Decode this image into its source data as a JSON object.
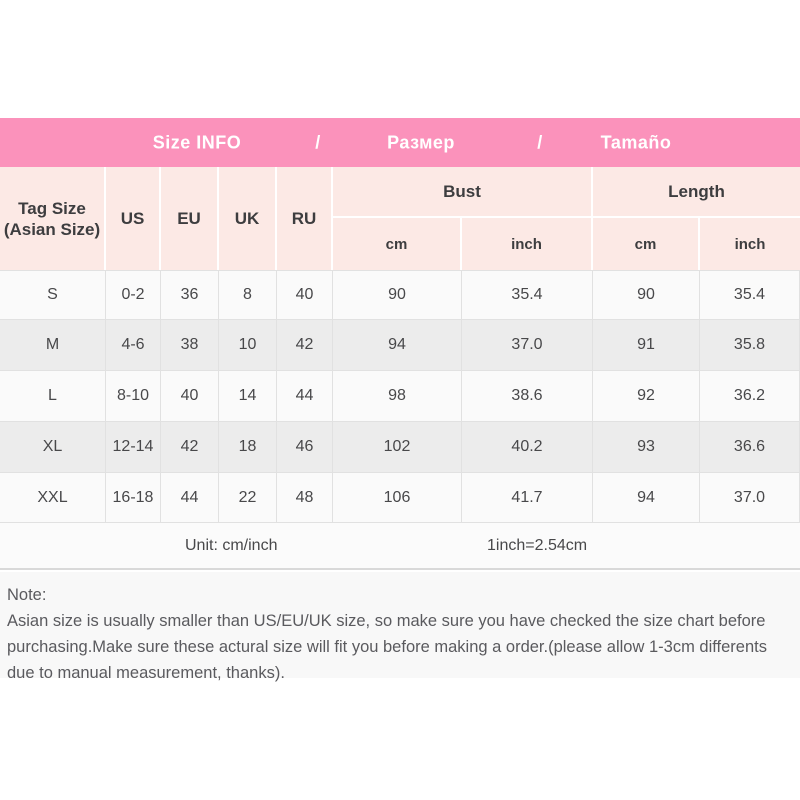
{
  "colors": {
    "accent_pink": "#fb92bb",
    "header_pink": "#fce9e5",
    "row_light": "#fafafa",
    "row_alt": "#ececec"
  },
  "title_bar": {
    "items": [
      "Size INFO",
      "/",
      "Размер",
      "/",
      "Tamaño"
    ]
  },
  "table": {
    "header": {
      "tag_line1": "Tag Size",
      "tag_line2": "(Asian Size)",
      "us": "US",
      "eu": "EU",
      "uk": "UK",
      "ru": "RU",
      "bust": "Bust",
      "length": "Length",
      "bust_cm": "cm",
      "bust_inch": "inch",
      "length_cm": "cm",
      "length_inch": "inch"
    },
    "rows": [
      {
        "tag": "S",
        "us": "0-2",
        "eu": "36",
        "uk": "8",
        "ru": "40",
        "bust_cm": "90",
        "bust_inch": "35.4",
        "length_cm": "90",
        "length_inch": "35.4"
      },
      {
        "tag": "M",
        "us": "4-6",
        "eu": "38",
        "uk": "10",
        "ru": "42",
        "bust_cm": "94",
        "bust_inch": "37.0",
        "length_cm": "91",
        "length_inch": "35.8"
      },
      {
        "tag": "L",
        "us": "8-10",
        "eu": "40",
        "uk": "14",
        "ru": "44",
        "bust_cm": "98",
        "bust_inch": "38.6",
        "length_cm": "92",
        "length_inch": "36.2"
      },
      {
        "tag": "XL",
        "us": "12-14",
        "eu": "42",
        "uk": "18",
        "ru": "46",
        "bust_cm": "102",
        "bust_inch": "40.2",
        "length_cm": "93",
        "length_inch": "36.6"
      },
      {
        "tag": "XXL",
        "us": "16-18",
        "eu": "44",
        "uk": "22",
        "ru": "48",
        "bust_cm": "106",
        "bust_inch": "41.7",
        "length_cm": "94",
        "length_inch": "37.0"
      }
    ],
    "footer": {
      "unit_label": "Unit: cm/inch",
      "conversion": "1inch=2.54cm"
    }
  },
  "note": {
    "title": "Note:",
    "body": "Asian size is usually smaller than US/EU/UK size, so make sure you have checked the size chart before purchasing.Make sure these actural size will fit you before making a order.(please allow 1-3cm differents due to manual measurement, thanks)."
  },
  "chart_data": {
    "type": "table",
    "title": "Size INFO / Размер / Tamaño",
    "columns": [
      "Tag Size (Asian Size)",
      "US",
      "EU",
      "UK",
      "RU",
      "Bust cm",
      "Bust inch",
      "Length cm",
      "Length inch"
    ],
    "rows": [
      [
        "S",
        "0-2",
        "36",
        "8",
        "40",
        "90",
        "35.4",
        "90",
        "35.4"
      ],
      [
        "M",
        "4-6",
        "38",
        "10",
        "42",
        "94",
        "37.0",
        "91",
        "35.8"
      ],
      [
        "L",
        "8-10",
        "40",
        "14",
        "44",
        "98",
        "38.6",
        "92",
        "36.2"
      ],
      [
        "XL",
        "12-14",
        "42",
        "18",
        "46",
        "102",
        "40.2",
        "93",
        "36.6"
      ],
      [
        "XXL",
        "16-18",
        "44",
        "22",
        "48",
        "106",
        "41.7",
        "94",
        "37.0"
      ]
    ],
    "footnotes": [
      "Unit: cm/inch",
      "1inch=2.54cm"
    ]
  }
}
